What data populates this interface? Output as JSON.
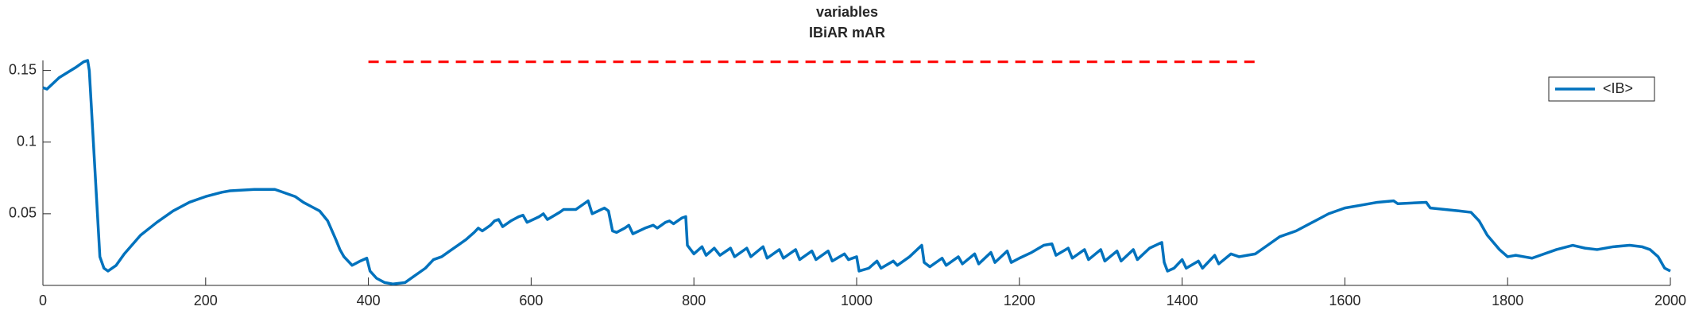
{
  "chart_data": {
    "type": "line",
    "title": "variables",
    "subtitle": "IBiAR mAR",
    "xlim": [
      0,
      2000
    ],
    "xticks": [
      0,
      200,
      400,
      600,
      800,
      1000,
      1200,
      1400,
      1600,
      1800,
      2000
    ],
    "ylim": [
      0,
      0.157
    ],
    "yticks": [
      0.05,
      0.1,
      0.15
    ],
    "legend": "upper right",
    "series": [
      {
        "name": "<IB>",
        "color": "#0072bd",
        "x": [
          0,
          5,
          20,
          40,
          50,
          55,
          57,
          62,
          67,
          70,
          75,
          80,
          90,
          100,
          120,
          140,
          160,
          180,
          200,
          220,
          230,
          260,
          285,
          290,
          300,
          310,
          320,
          330,
          340,
          350,
          360,
          365,
          370,
          380,
          390,
          398,
          402,
          410,
          420,
          430,
          445,
          455,
          470,
          480,
          490,
          500,
          510,
          520,
          530,
          535,
          540,
          550,
          555,
          560,
          565,
          575,
          585,
          590,
          595,
          610,
          615,
          620,
          635,
          640,
          655,
          665,
          670,
          675,
          690,
          695,
          700,
          705,
          715,
          720,
          725,
          740,
          750,
          755,
          765,
          770,
          775,
          785,
          790,
          792,
          800,
          810,
          815,
          825,
          832,
          845,
          850,
          865,
          870,
          885,
          890,
          905,
          910,
          925,
          930,
          945,
          950,
          965,
          970,
          985,
          990,
          1000,
          1003,
          1015,
          1025,
          1030,
          1045,
          1050,
          1065,
          1080,
          1083,
          1090,
          1105,
          1110,
          1125,
          1130,
          1145,
          1150,
          1165,
          1170,
          1185,
          1190,
          1200,
          1215,
          1230,
          1240,
          1245,
          1260,
          1265,
          1280,
          1285,
          1300,
          1305,
          1320,
          1325,
          1340,
          1345,
          1360,
          1375,
          1378,
          1382,
          1390,
          1400,
          1405,
          1420,
          1425,
          1440,
          1445,
          1460,
          1470,
          1480,
          1490,
          1500,
          1520,
          1540,
          1560,
          1580,
          1600,
          1620,
          1640,
          1660,
          1665,
          1700,
          1705,
          1740,
          1755,
          1765,
          1775,
          1790,
          1800,
          1810,
          1820,
          1830,
          1840,
          1860,
          1880,
          1895,
          1910,
          1930,
          1950,
          1965,
          1975,
          1985,
          1993,
          2000
        ],
        "values": [
          0.138,
          0.137,
          0.145,
          0.152,
          0.156,
          0.157,
          0.15,
          0.1,
          0.05,
          0.02,
          0.012,
          0.01,
          0.014,
          0.022,
          0.035,
          0.044,
          0.052,
          0.058,
          0.062,
          0.065,
          0.066,
          0.067,
          0.067,
          0.066,
          0.064,
          0.062,
          0.058,
          0.055,
          0.052,
          0.045,
          0.032,
          0.025,
          0.02,
          0.014,
          0.017,
          0.019,
          0.01,
          0.005,
          0.002,
          0.001,
          0.002,
          0.006,
          0.012,
          0.018,
          0.02,
          0.024,
          0.028,
          0.032,
          0.037,
          0.04,
          0.038,
          0.042,
          0.045,
          0.046,
          0.041,
          0.045,
          0.048,
          0.049,
          0.044,
          0.048,
          0.05,
          0.046,
          0.051,
          0.053,
          0.053,
          0.057,
          0.059,
          0.05,
          0.054,
          0.052,
          0.038,
          0.037,
          0.04,
          0.042,
          0.036,
          0.04,
          0.042,
          0.04,
          0.044,
          0.045,
          0.043,
          0.047,
          0.048,
          0.028,
          0.022,
          0.027,
          0.021,
          0.026,
          0.021,
          0.026,
          0.02,
          0.026,
          0.02,
          0.027,
          0.019,
          0.025,
          0.019,
          0.025,
          0.018,
          0.024,
          0.018,
          0.024,
          0.017,
          0.022,
          0.018,
          0.02,
          0.01,
          0.012,
          0.017,
          0.012,
          0.017,
          0.014,
          0.02,
          0.028,
          0.016,
          0.013,
          0.019,
          0.014,
          0.02,
          0.015,
          0.022,
          0.015,
          0.023,
          0.016,
          0.024,
          0.016,
          0.019,
          0.023,
          0.028,
          0.029,
          0.021,
          0.026,
          0.019,
          0.025,
          0.018,
          0.025,
          0.017,
          0.024,
          0.017,
          0.025,
          0.018,
          0.026,
          0.03,
          0.016,
          0.01,
          0.012,
          0.018,
          0.012,
          0.017,
          0.012,
          0.021,
          0.015,
          0.022,
          0.02,
          0.021,
          0.022,
          0.026,
          0.034,
          0.038,
          0.044,
          0.05,
          0.054,
          0.056,
          0.058,
          0.059,
          0.057,
          0.058,
          0.054,
          0.052,
          0.051,
          0.045,
          0.035,
          0.025,
          0.02,
          0.021,
          0.02,
          0.019,
          0.021,
          0.025,
          0.028,
          0.026,
          0.025,
          0.027,
          0.028,
          0.027,
          0.025,
          0.02,
          0.012,
          0.01
        ]
      },
      {
        "color": "#ff0000",
        "dashed": true,
        "x": [
          400,
          1230,
          1235,
          1240,
          1490
        ],
        "values": [
          0.156,
          0.156,
          null,
          0.156,
          0.156
        ]
      }
    ]
  }
}
